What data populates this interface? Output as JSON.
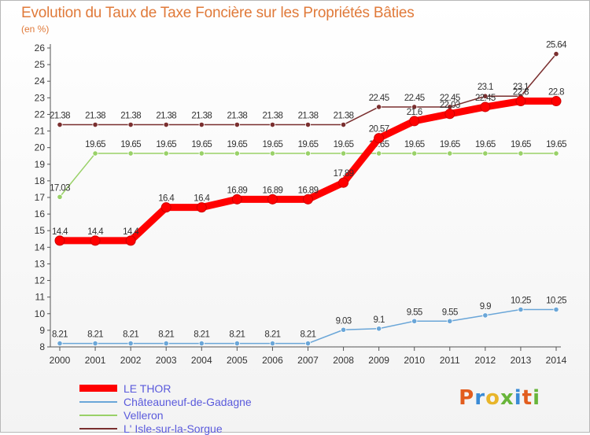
{
  "title": "Evolution du Taux de Taxe Foncière sur les Propriétés Bâties",
  "unit_label": "(en %)",
  "logo": [
    "P",
    "r",
    "o",
    "x",
    "i",
    "t",
    "i"
  ],
  "logo_colors": [
    "#e25d1e",
    "#3a8bd6",
    "#e8b52a",
    "#68b53a",
    "#3a8bd6",
    "#e25d1e",
    "#68b53a"
  ],
  "chart_data": {
    "type": "line",
    "title": "Evolution du Taux de Taxe Foncière sur les Propriétés Bâties",
    "ylabel": "(en %)",
    "ylim": [
      8,
      26
    ],
    "categories": [
      "2000",
      "2001",
      "2002",
      "2003",
      "2004",
      "2005",
      "2006",
      "2007",
      "2008",
      "2009",
      "2010",
      "2011",
      "2012",
      "2013",
      "2014"
    ],
    "y_ticks": [
      "8",
      "9",
      "10",
      "11",
      "12",
      "13",
      "14",
      "15",
      "16",
      "17",
      "18",
      "19",
      "20",
      "21",
      "22",
      "23",
      "24",
      "25",
      "26"
    ],
    "grid": false,
    "legend_position": "bottom-left",
    "series": [
      {
        "name": "LE THOR",
        "color": "#ff0000",
        "values": [
          14.4,
          14.4,
          14.4,
          16.4,
          16.4,
          16.89,
          16.89,
          16.89,
          17.89,
          20.57,
          21.6,
          22.03,
          22.45,
          22.8,
          22.8
        ],
        "labels": [
          "14.4",
          "14.4",
          "14.4",
          "16.4",
          "16.4",
          "16.89",
          "16.89",
          "16.89",
          "17.89",
          "20.57",
          "21.6",
          "22.03",
          "22.45",
          "22.8",
          "22.8"
        ]
      },
      {
        "name": "Châteauneuf-de-Gadagne",
        "color": "#6aa6d8",
        "values": [
          8.21,
          8.21,
          8.21,
          8.21,
          8.21,
          8.21,
          8.21,
          8.21,
          9.03,
          9.1,
          9.55,
          9.55,
          9.9,
          10.25,
          10.25
        ],
        "labels": [
          "8.21",
          "8.21",
          "8.21",
          "8.21",
          "8.21",
          "8.21",
          "8.21",
          "8.21",
          "9.03",
          "9.1",
          "9.55",
          "9.55",
          "9.9",
          "10.25",
          "10.25"
        ]
      },
      {
        "name": "Velleron",
        "color": "#99d168",
        "values": [
          17.03,
          19.65,
          19.65,
          19.65,
          19.65,
          19.65,
          19.65,
          19.65,
          19.65,
          19.65,
          19.65,
          19.65,
          19.65,
          19.65,
          19.65
        ],
        "labels": [
          "17.03",
          "19.65",
          "19.65",
          "19.65",
          "19.65",
          "19.65",
          "19.65",
          "19.65",
          "19.65",
          "19.65",
          "19.65",
          "19.65",
          "19.65",
          "19.65",
          "19.65"
        ]
      },
      {
        "name": "L' Isle-sur-la-Sorgue",
        "color": "#7a2f2f",
        "values": [
          21.38,
          21.38,
          21.38,
          21.38,
          21.38,
          21.38,
          21.38,
          21.38,
          21.38,
          22.45,
          22.45,
          22.45,
          23.1,
          23.1,
          25.64
        ],
        "labels": [
          "21.38",
          "21.38",
          "21.38",
          "21.38",
          "21.38",
          "21.38",
          "21.38",
          "21.38",
          "21.38",
          "22.45",
          "22.45",
          "22.45",
          "23.1",
          "23.1",
          "25.64"
        ]
      }
    ]
  }
}
